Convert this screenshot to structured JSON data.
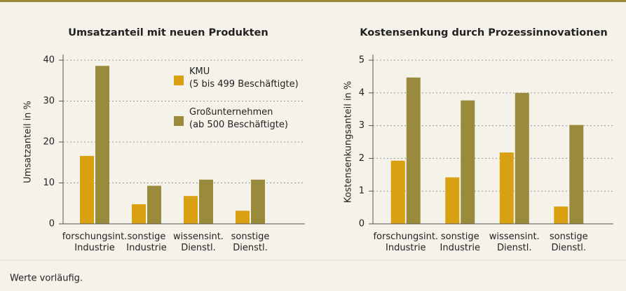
{
  "chart_data": [
    {
      "type": "bar",
      "title": "Umsatzanteil mit neuen Produkten",
      "y_label": "Umsatzanteil in %",
      "categories": [
        [
          "forschungsint.",
          "Industrie"
        ],
        [
          "sonstige",
          "Industrie"
        ],
        [
          "wissensint.",
          "Dienstl."
        ],
        [
          "sonstige",
          "Dienstl."
        ]
      ],
      "series": [
        {
          "name": [
            "KMU",
            "(5 bis 499 Beschäftigte)"
          ],
          "color": "#d9a012",
          "values": [
            16.6,
            4.8,
            6.8,
            3.2
          ]
        },
        {
          "name": [
            "Großunternehmen",
            "(ab 500 Beschäftigte)"
          ],
          "color": "#9a8a3c",
          "values": [
            38.6,
            9.3,
            10.8,
            10.8
          ]
        }
      ],
      "ylim": [
        0,
        40
      ],
      "yticks": [
        0,
        10,
        20,
        30,
        40
      ],
      "grid": true,
      "legend": "top-right"
    },
    {
      "type": "bar",
      "title": "Kostensenkung durch Prozessinnovationen",
      "y_label": "Kostensenkungsanteil in %",
      "categories": [
        [
          "forschungsint.",
          "Industrie"
        ],
        [
          "sonstige",
          "Industrie"
        ],
        [
          "wissensint.",
          "Dienstl."
        ],
        [
          "sonstige",
          "Dienstl."
        ]
      ],
      "series": [
        {
          "color": "#d9a012",
          "values": [
            1.93,
            1.42,
            2.18,
            0.53
          ]
        },
        {
          "color": "#9a8a3c",
          "values": [
            4.47,
            3.77,
            4.0,
            3.02
          ]
        }
      ],
      "ylim": [
        0,
        5
      ],
      "yticks": [
        0,
        1,
        2,
        3,
        4,
        5
      ],
      "grid": true
    }
  ],
  "note": "Werte vorläufig."
}
